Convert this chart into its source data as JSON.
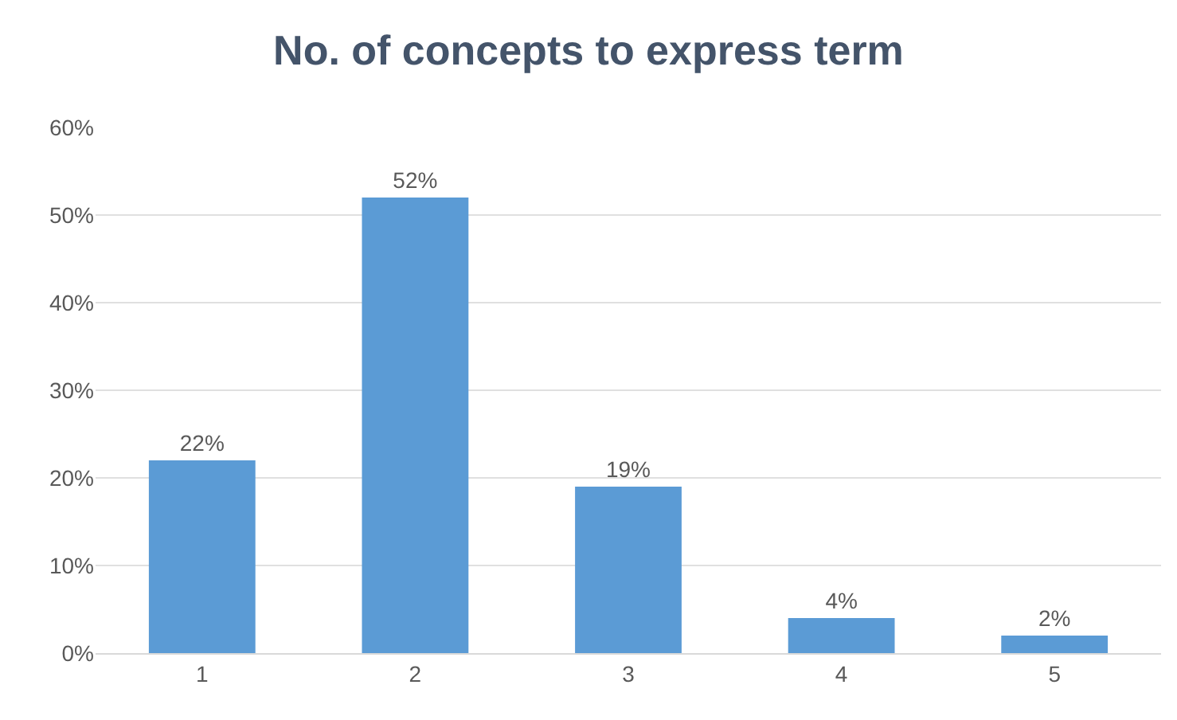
{
  "chart_data": {
    "type": "bar",
    "title": "No. of concepts to express term",
    "categories": [
      "1",
      "2",
      "3",
      "4",
      "5"
    ],
    "values": [
      22,
      52,
      19,
      4,
      2
    ],
    "value_labels": [
      "22%",
      "52%",
      "19%",
      "4%",
      "2%"
    ],
    "color": "#5b9bd5",
    "ylim": [
      0,
      60
    ],
    "yticks": [
      {
        "value": 0,
        "label": "0%"
      },
      {
        "value": 10,
        "label": "10%"
      },
      {
        "value": 20,
        "label": "20%"
      },
      {
        "value": 30,
        "label": "30%"
      },
      {
        "value": 40,
        "label": "40%"
      },
      {
        "value": 50,
        "label": "50%"
      },
      {
        "value": 60,
        "label": "60%"
      }
    ],
    "grid": "y"
  }
}
